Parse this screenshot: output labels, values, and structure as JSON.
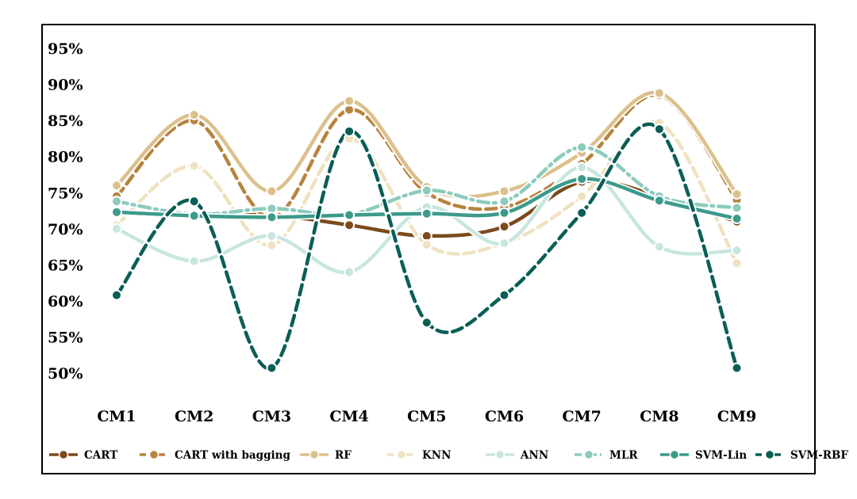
{
  "chart_data": {
    "type": "line",
    "title": "",
    "xlabel": "",
    "ylabel": "",
    "categories": [
      "CM1",
      "CM2",
      "CM3",
      "CM4",
      "CM5",
      "CM6",
      "CM7",
      "CM8",
      "CM9"
    ],
    "ylim": [
      46,
      97
    ],
    "yticks": [
      50,
      55,
      60,
      65,
      70,
      75,
      80,
      85,
      90,
      95
    ],
    "ytick_labels": [
      "50%",
      "55%",
      "60%",
      "65%",
      "70%",
      "75%",
      "80%",
      "85%",
      "90%",
      "95%"
    ],
    "grid": false,
    "legend_position": "bottom",
    "series": [
      {
        "name": "CART",
        "color": "#7b4a1c",
        "dash": "solid",
        "values": [
          72.5,
          71.8,
          71.9,
          70.5,
          69.0,
          70.3,
          76.5,
          74.5,
          71.0
        ]
      },
      {
        "name": "CART with bagging",
        "color": "#b7843f",
        "dash": "dash",
        "values": [
          74.5,
          85.0,
          71.5,
          86.5,
          75.0,
          73.0,
          79.0,
          88.5,
          74.0
        ]
      },
      {
        "name": "RF",
        "color": "#dcc08c",
        "dash": "solid",
        "values": [
          76.0,
          85.8,
          75.2,
          87.7,
          75.8,
          75.2,
          80.5,
          88.8,
          74.8
        ]
      },
      {
        "name": "KNN",
        "color": "#efe2c0",
        "dash": "dash",
        "values": [
          70.5,
          78.7,
          67.7,
          82.5,
          67.8,
          68.0,
          74.5,
          84.7,
          65.2
        ]
      },
      {
        "name": "ANN",
        "color": "#c7e6df",
        "dash": "solid",
        "values": [
          70.0,
          65.5,
          69.0,
          64.0,
          73.0,
          68.0,
          78.5,
          67.5,
          67.0
        ]
      },
      {
        "name": "MLR",
        "color": "#8ccbbd",
        "dash": "dashdot",
        "values": [
          73.8,
          72.0,
          72.8,
          72.0,
          75.3,
          73.8,
          81.3,
          74.5,
          72.9
        ]
      },
      {
        "name": "SVM-Lin",
        "color": "#3c9a8c",
        "dash": "solid",
        "values": [
          72.3,
          71.8,
          71.6,
          71.9,
          72.1,
          72.2,
          76.9,
          73.9,
          71.4
        ]
      },
      {
        "name": "SVM-RBF",
        "color": "#0a5e56",
        "dash": "dash",
        "values": [
          60.8,
          73.8,
          50.7,
          83.5,
          57.0,
          60.8,
          72.2,
          83.8,
          50.7
        ]
      }
    ]
  }
}
